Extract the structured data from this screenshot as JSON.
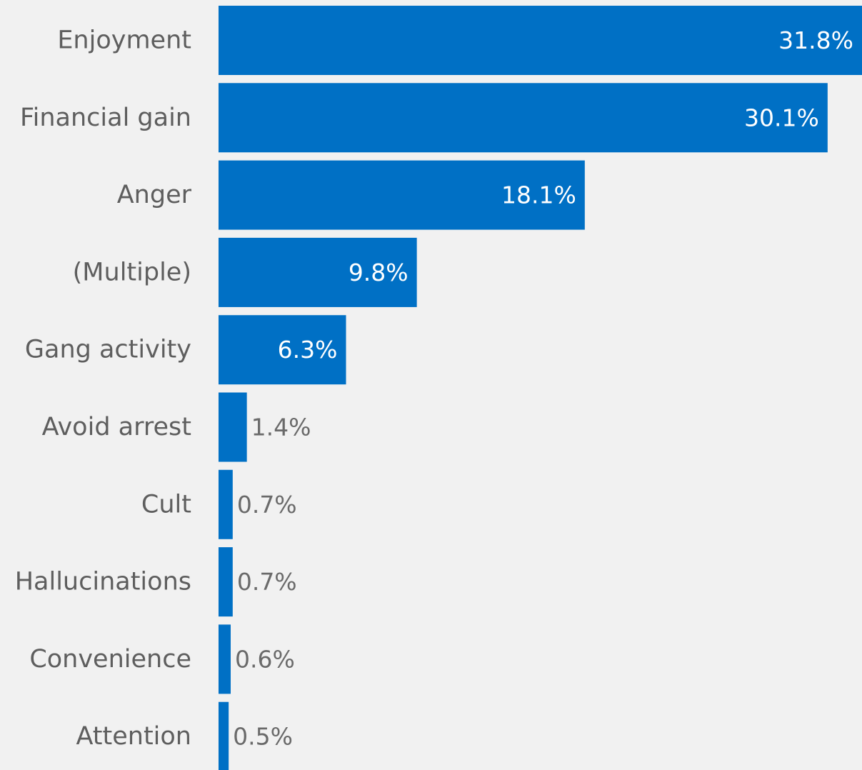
{
  "chart_data": {
    "type": "bar",
    "orientation": "horizontal",
    "categories": [
      "Enjoyment",
      "Financial gain",
      "Anger",
      "(Multiple)",
      "Gang activity",
      "Avoid arrest",
      "Cult",
      "Hallucinations",
      "Convenience",
      "Attention"
    ],
    "values": [
      31.8,
      30.1,
      18.1,
      9.8,
      6.3,
      1.4,
      0.7,
      0.7,
      0.6,
      0.5
    ],
    "value_labels": [
      "31.8%",
      "30.1%",
      "18.1%",
      "9.8%",
      "6.3%",
      "1.4%",
      "0.7%",
      "0.7%",
      "0.6%",
      "0.5%"
    ],
    "xlim": [
      0,
      31.8
    ],
    "grid": false,
    "bar_color": "#0070c5",
    "background": "#f1f1f1"
  }
}
